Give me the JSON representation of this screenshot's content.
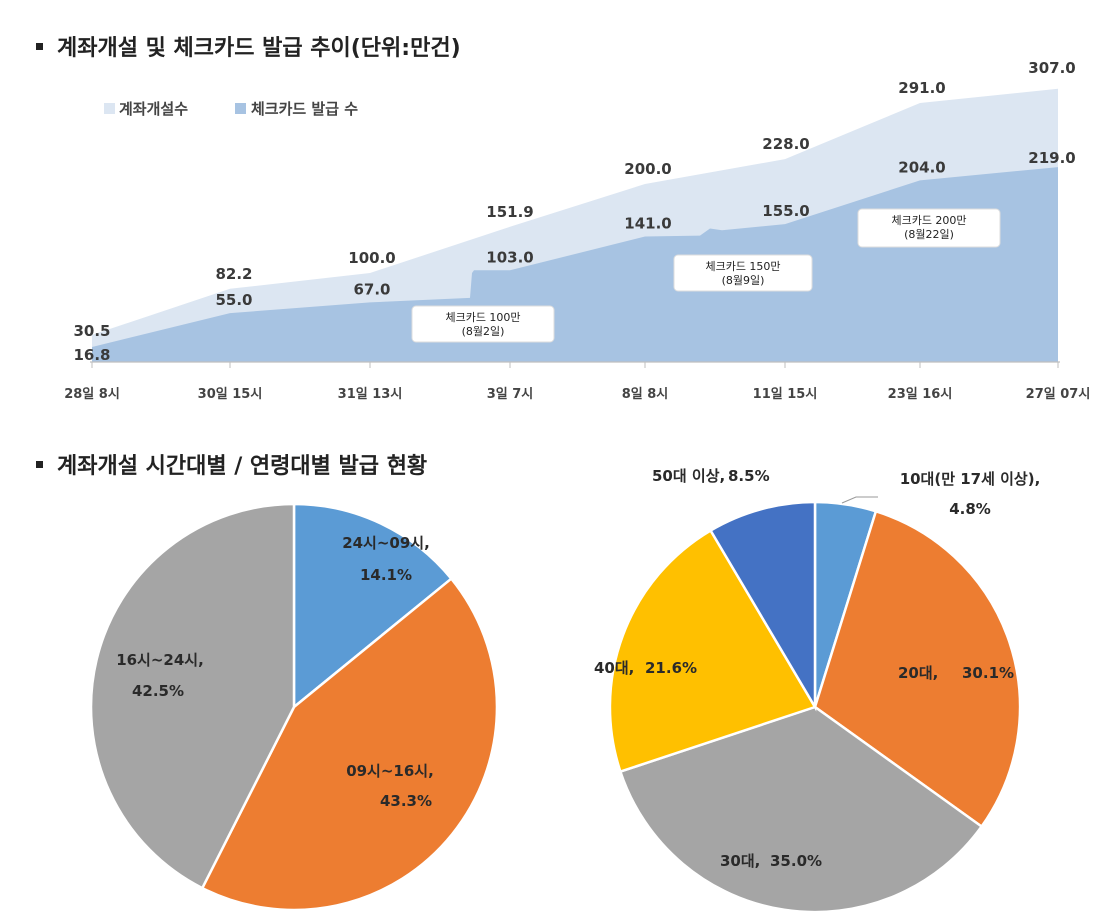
{
  "sections": {
    "trend_title": "계좌개설 및 체크카드 발급 추이(단위:만건)",
    "pie_title": "계좌개설 시간대별 / 연령대별 발급 현황"
  },
  "chart_data": [
    {
      "type": "area",
      "title": "계좌개설 및 체크카드 발급 추이(단위:만건)",
      "categories": [
        "28일 8시",
        "30일 15시",
        "31일 13시",
        "3일 7시",
        "8일 8시",
        "11일 15시",
        "23일 16시",
        "27일 07시"
      ],
      "series": [
        {
          "name": "계좌개설수",
          "color": "#dce6f2",
          "values": [
            30.5,
            82.2,
            100.0,
            151.9,
            200.0,
            228.0,
            291.0,
            307.0
          ]
        },
        {
          "name": "체크카드 발급 수",
          "color": "#a7c3e2",
          "values": [
            16.8,
            55.0,
            67.0,
            103.0,
            141.0,
            155.0,
            204.0,
            219.0
          ]
        }
      ],
      "value_labels": {
        "계좌개설수": [
          "30.5",
          "82.2",
          "100.0",
          "151.9",
          "200.0",
          "228.0",
          "291.0",
          "307.0"
        ],
        "체크카드 발급 수": [
          "16.8",
          "55.0",
          "67.0",
          "103.0",
          "141.0",
          "155.0",
          "204.0",
          "219.0"
        ]
      },
      "annotations": [
        {
          "lines": [
            "체크카드 100만",
            "(8월2일)"
          ]
        },
        {
          "lines": [
            "체크카드 150만",
            "(8월9일)"
          ]
        },
        {
          "lines": [
            "체크카드 200만",
            "(8월22일)"
          ]
        }
      ],
      "ylim": [
        0,
        320
      ],
      "legend": "top-left",
      "grid": false
    },
    {
      "type": "pie",
      "title": "",
      "slices": [
        {
          "label": "24시~09시,",
          "pct": "14.1%",
          "value": 14.1,
          "color": "#5b9bd5"
        },
        {
          "label": "09시~16시,",
          "pct": "43.3%",
          "value": 43.3,
          "color": "#ed7d31"
        },
        {
          "label": "16시~24시,",
          "pct": "42.5%",
          "value": 42.5,
          "color": "#a5a5a5"
        }
      ]
    },
    {
      "type": "pie",
      "title": "",
      "slices": [
        {
          "label": "10대(만 17세 이상),",
          "pct": "4.8%",
          "value": 4.8,
          "color": "#5b9bd5"
        },
        {
          "label": "20대,",
          "pct": "30.1%",
          "value": 30.1,
          "color": "#ed7d31"
        },
        {
          "label": "30대,",
          "pct": "35.0%",
          "value": 35.0,
          "color": "#a5a5a5"
        },
        {
          "label": "40대,",
          "pct": "21.6%",
          "value": 21.6,
          "color": "#ffc000"
        },
        {
          "label": "50대 이상,",
          "pct": "8.5%",
          "value": 8.5,
          "color": "#4472c4"
        }
      ]
    }
  ]
}
